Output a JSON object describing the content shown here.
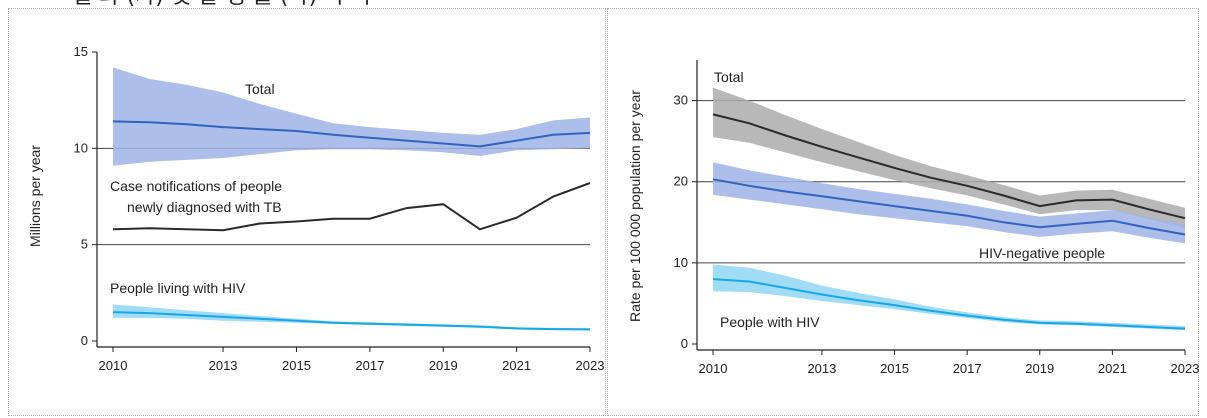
{
  "header_fragment": "결 과 (가) 및 발 생 률 (나) 하 락",
  "chart_data": [
    {
      "type": "area",
      "title": "",
      "xlabel": "",
      "ylabel": "Millions per year",
      "xlim": [
        2010,
        2023
      ],
      "ylim": [
        0,
        15
      ],
      "xticks": [
        2010,
        2013,
        2015,
        2017,
        2019,
        2021,
        2023
      ],
      "yticks": [
        0,
        5,
        10,
        15
      ],
      "gridlines_y": [
        5,
        10
      ],
      "series": [
        {
          "name": "Total",
          "color": "#2f64c0",
          "band_color": "#9fb3e6",
          "x": [
            2010,
            2011,
            2012,
            2013,
            2014,
            2015,
            2016,
            2017,
            2018,
            2019,
            2020,
            2021,
            2022,
            2023
          ],
          "values": [
            11.4,
            11.35,
            11.25,
            11.1,
            11.0,
            10.9,
            10.7,
            10.55,
            10.4,
            10.25,
            10.1,
            10.4,
            10.7,
            10.8
          ],
          "lower": [
            9.1,
            9.3,
            9.4,
            9.5,
            9.7,
            9.9,
            9.95,
            9.95,
            9.9,
            9.8,
            9.6,
            9.9,
            9.95,
            10.0
          ],
          "upper": [
            14.2,
            13.6,
            13.3,
            12.9,
            12.3,
            11.8,
            11.3,
            11.1,
            10.95,
            10.8,
            10.7,
            11.0,
            11.45,
            11.6
          ]
        },
        {
          "name": "Case notifications of people newly diagnosed with TB",
          "color": "#2a2a2a",
          "x": [
            2010,
            2011,
            2012,
            2013,
            2014,
            2015,
            2016,
            2017,
            2018,
            2019,
            2020,
            2021,
            2022,
            2023
          ],
          "values": [
            5.8,
            5.85,
            5.8,
            5.75,
            6.1,
            6.2,
            6.35,
            6.35,
            6.9,
            7.1,
            5.8,
            6.4,
            7.5,
            8.2
          ]
        },
        {
          "name": "People living with HIV",
          "color": "#1aa6e6",
          "band_color": "#8fd6f5",
          "x": [
            2010,
            2011,
            2012,
            2013,
            2014,
            2015,
            2016,
            2017,
            2018,
            2019,
            2020,
            2021,
            2022,
            2023
          ],
          "values": [
            1.5,
            1.45,
            1.35,
            1.25,
            1.15,
            1.05,
            0.95,
            0.9,
            0.85,
            0.8,
            0.75,
            0.65,
            0.62,
            0.6
          ],
          "lower": [
            1.2,
            1.2,
            1.15,
            1.05,
            1.0,
            0.95,
            0.88,
            0.83,
            0.78,
            0.73,
            0.68,
            0.6,
            0.57,
            0.55
          ],
          "upper": [
            1.9,
            1.75,
            1.6,
            1.45,
            1.3,
            1.15,
            1.02,
            0.97,
            0.92,
            0.87,
            0.82,
            0.72,
            0.68,
            0.66
          ]
        }
      ]
    },
    {
      "type": "area",
      "title": "",
      "xlabel": "",
      "ylabel": "Rate per 100 000 population per year",
      "xlim": [
        2010,
        2023
      ],
      "ylim": [
        0,
        35
      ],
      "xticks": [
        2010,
        2013,
        2015,
        2017,
        2019,
        2021,
        2023
      ],
      "yticks": [
        0,
        10,
        20,
        30
      ],
      "gridlines_y": [
        10,
        20,
        30
      ],
      "series": [
        {
          "name": "Total",
          "color": "#2a2a2a",
          "band_color": "#ababab",
          "x": [
            2010,
            2011,
            2012,
            2013,
            2014,
            2015,
            2016,
            2017,
            2018,
            2019,
            2020,
            2021,
            2022,
            2023
          ],
          "values": [
            28.3,
            27.2,
            25.7,
            24.3,
            23.0,
            21.7,
            20.5,
            19.5,
            18.3,
            17.0,
            17.7,
            17.8,
            16.6,
            15.5
          ],
          "lower": [
            25.5,
            24.8,
            23.6,
            22.4,
            21.3,
            20.2,
            19.2,
            18.3,
            17.2,
            16.0,
            16.5,
            16.5,
            15.4,
            14.3
          ],
          "upper": [
            31.6,
            30.0,
            28.2,
            26.5,
            24.9,
            23.3,
            21.9,
            20.8,
            19.6,
            18.3,
            18.9,
            19.0,
            17.9,
            16.8
          ]
        },
        {
          "name": "HIV-negative people",
          "color": "#2f64c0",
          "band_color": "#9fb3e6",
          "x": [
            2010,
            2011,
            2012,
            2013,
            2014,
            2015,
            2016,
            2017,
            2018,
            2019,
            2020,
            2021,
            2022,
            2023
          ],
          "values": [
            20.3,
            19.5,
            18.8,
            18.2,
            17.6,
            17.0,
            16.4,
            15.8,
            15.0,
            14.4,
            14.8,
            15.2,
            14.3,
            13.5
          ],
          "lower": [
            18.4,
            17.8,
            17.2,
            16.6,
            16.0,
            15.5,
            15.0,
            14.5,
            13.8,
            13.2,
            13.6,
            13.9,
            13.1,
            12.4
          ],
          "upper": [
            22.4,
            21.4,
            20.6,
            19.8,
            19.1,
            18.5,
            17.9,
            17.2,
            16.4,
            15.7,
            16.1,
            16.5,
            15.6,
            14.7
          ]
        },
        {
          "name": "People with HIV",
          "color": "#1aa6e6",
          "band_color": "#8fd6f5",
          "x": [
            2010,
            2011,
            2012,
            2013,
            2014,
            2015,
            2016,
            2017,
            2018,
            2019,
            2020,
            2021,
            2022,
            2023
          ],
          "values": [
            8.0,
            7.7,
            6.9,
            6.1,
            5.4,
            4.8,
            4.1,
            3.5,
            3.0,
            2.6,
            2.5,
            2.3,
            2.1,
            1.9
          ],
          "lower": [
            6.5,
            6.4,
            5.9,
            5.3,
            4.8,
            4.3,
            3.7,
            3.2,
            2.7,
            2.4,
            2.3,
            2.1,
            1.9,
            1.7
          ],
          "upper": [
            9.8,
            9.4,
            8.4,
            7.2,
            6.3,
            5.5,
            4.6,
            3.9,
            3.3,
            2.9,
            2.8,
            2.6,
            2.4,
            2.2
          ]
        }
      ]
    }
  ]
}
